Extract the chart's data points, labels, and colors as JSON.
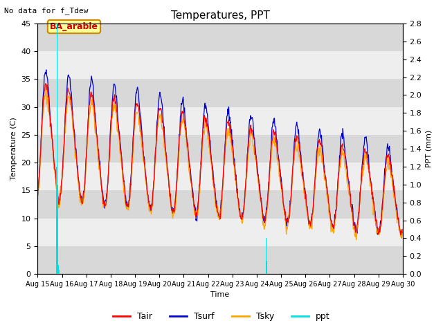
{
  "title": "Temperatures, PPT",
  "subtitle": "No data for f_Tdew",
  "xlabel": "Time",
  "ylabel_left": "Temperature (C)",
  "ylabel_right": "PPT (mm)",
  "annotation": "BA_arable",
  "ylim_left": [
    0,
    45
  ],
  "ylim_right": [
    0.0,
    2.8
  ],
  "yticks_left": [
    0,
    5,
    10,
    15,
    20,
    25,
    30,
    35,
    40,
    45
  ],
  "xtick_labels": [
    "Aug 15",
    "Aug 16",
    "Aug 17",
    "Aug 18",
    "Aug 19",
    "Aug 20",
    "Aug 21",
    "Aug 22",
    "Aug 23",
    "Aug 24",
    "Aug 25",
    "Aug 26",
    "Aug 27",
    "Aug 28",
    "Aug 29",
    "Aug 30"
  ],
  "colors": {
    "Tair": "#ff0000",
    "Tsurf": "#0000cc",
    "Tsky": "#ffa500",
    "ppt": "#00e0e0",
    "background_dark": "#d8d8d8",
    "background_light": "#eeeeee",
    "annotation_fg": "#cc0000",
    "annotation_bg": "#ffff99",
    "annotation_border": "#cc8800"
  },
  "legend": [
    "Tair",
    "Tsurf",
    "Tsky",
    "ppt"
  ],
  "n_days": 16,
  "pts_per_day": 48
}
